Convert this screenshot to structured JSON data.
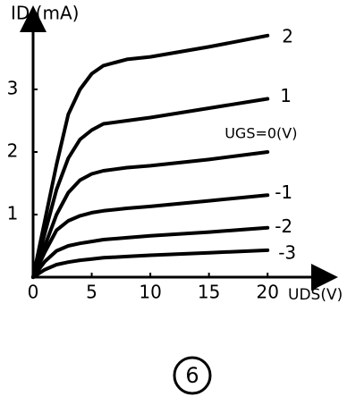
{
  "chart_data": {
    "type": "line",
    "y_label": "ID (mA)",
    "x_label": "UDS(V)",
    "figure_label": "6",
    "x": [
      0,
      1,
      2,
      3,
      4,
      5,
      6,
      8,
      10,
      15,
      20
    ],
    "series": [
      {
        "name": "2",
        "color": "#000000",
        "values": [
          0,
          0.9,
          1.8,
          2.6,
          3.0,
          3.25,
          3.38,
          3.48,
          3.52,
          3.68,
          3.86
        ]
      },
      {
        "name": "1",
        "color": "#000000",
        "values": [
          0,
          0.7,
          1.4,
          1.9,
          2.2,
          2.35,
          2.45,
          2.5,
          2.55,
          2.7,
          2.85
        ]
      },
      {
        "name": "UGS=0(V)",
        "color": "#000000",
        "values": [
          0,
          0.5,
          1.0,
          1.35,
          1.55,
          1.65,
          1.7,
          1.75,
          1.78,
          1.88,
          2.0
        ]
      },
      {
        "name": "-1",
        "color": "#000000",
        "values": [
          0,
          0.4,
          0.75,
          0.9,
          0.98,
          1.03,
          1.06,
          1.1,
          1.13,
          1.22,
          1.31
        ]
      },
      {
        "name": "-2",
        "color": "#000000",
        "values": [
          0,
          0.25,
          0.42,
          0.5,
          0.54,
          0.57,
          0.6,
          0.63,
          0.66,
          0.72,
          0.79
        ]
      },
      {
        "name": "-3",
        "color": "#000000",
        "values": [
          0,
          0.12,
          0.2,
          0.24,
          0.27,
          0.29,
          0.31,
          0.33,
          0.35,
          0.39,
          0.43
        ]
      }
    ],
    "xlim": [
      0,
      25.4
    ],
    "ylim": [
      0,
      4.2
    ],
    "xticks": [
      0,
      5,
      10,
      15,
      20
    ],
    "yticks": [
      1,
      2,
      3
    ],
    "grid": false
  }
}
